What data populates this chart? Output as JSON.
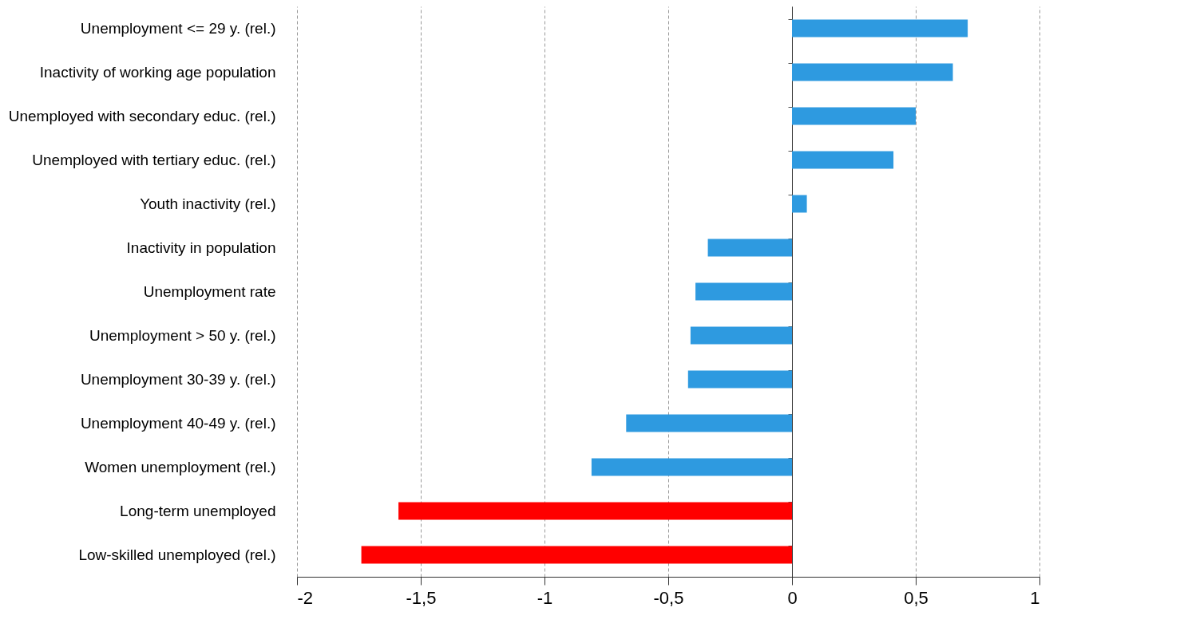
{
  "chart_data": {
    "type": "bar",
    "orientation": "horizontal",
    "categories": [
      "Unemployment <= 29 y. (rel.)",
      "Inactivity of working age population",
      "Unemployed with secondary educ. (rel.)",
      "Unemployed with tertiary educ. (rel.)",
      "Youth inactivity (rel.)",
      "Inactivity in population",
      "Unemployment rate",
      "Unemployment > 50 y. (rel.)",
      "Unemployment 30-39 y. (rel.)",
      "Unemployment 40-49 y. (rel.)",
      "Women unemployment (rel.)",
      "Long-term unemployed",
      "Low-skilled unemployed (rel.)"
    ],
    "values": [
      0.71,
      0.65,
      0.5,
      0.41,
      0.06,
      -0.34,
      -0.39,
      -0.41,
      -0.42,
      -0.67,
      -0.81,
      -1.59,
      -1.74
    ],
    "colors": [
      "#2e9ae0",
      "#2e9ae0",
      "#2e9ae0",
      "#2e9ae0",
      "#2e9ae0",
      "#2e9ae0",
      "#2e9ae0",
      "#2e9ae0",
      "#2e9ae0",
      "#2e9ae0",
      "#2e9ae0",
      "#ff0000",
      "#ff0000"
    ],
    "xlim": [
      -2,
      1
    ],
    "xticks": [
      -2,
      {
        "value": -1.5,
        "label": "-1,5"
      },
      -1,
      {
        "value": -0.5,
        "label": "-0,5"
      },
      0,
      {
        "value": 0.5,
        "label": "0,5"
      },
      1
    ],
    "grid": "x"
  }
}
